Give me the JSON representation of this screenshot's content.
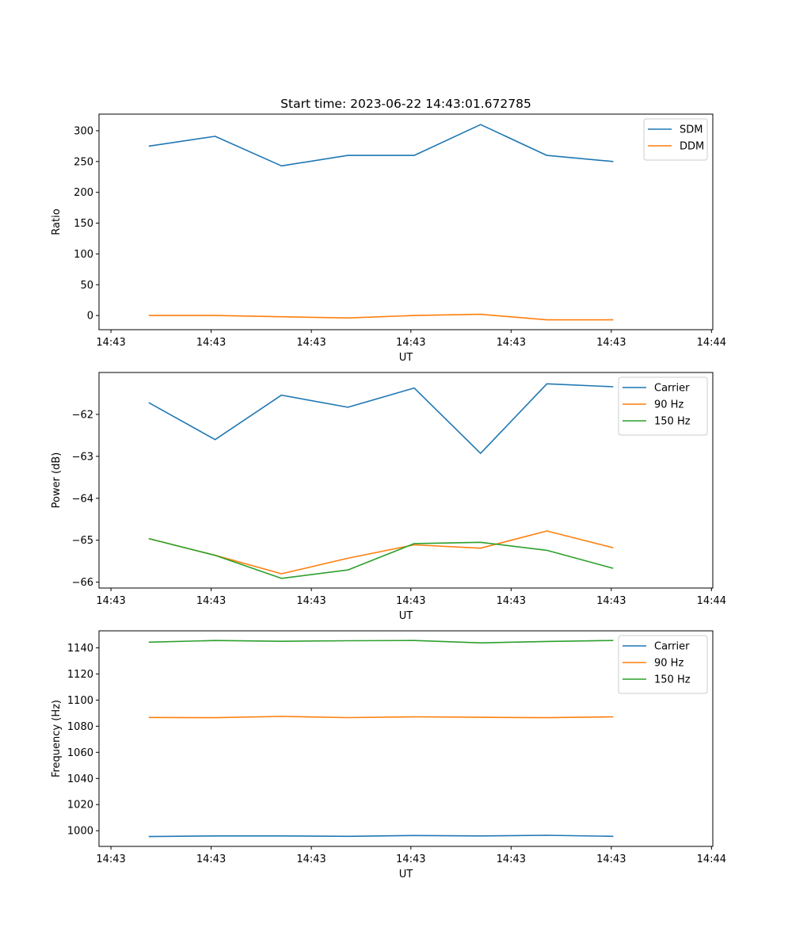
{
  "chart_data": [
    {
      "type": "line",
      "title": "Start time: 2023-06-22 14:43:01.672785",
      "xlabel": "UT",
      "ylabel": "Ratio",
      "x": [
        1,
        2,
        3,
        4,
        5,
        6,
        7,
        8
      ],
      "xlim": [
        0.25,
        9.5
      ],
      "xticks": [
        0.43,
        1.94,
        3.45,
        4.95,
        6.46,
        7.97,
        9.48
      ],
      "xtick_labels": [
        "14:43",
        "14:43",
        "14:43",
        "14:43",
        "14:43",
        "14:43",
        "14:44"
      ],
      "ylim": [
        -23,
        327
      ],
      "yticks": [
        0,
        50,
        100,
        150,
        200,
        250,
        300
      ],
      "ytick_labels": [
        "0",
        "50",
        "100",
        "150",
        "200",
        "250",
        "300"
      ],
      "grid": false,
      "legend": "top-right",
      "series": [
        {
          "name": "SDM",
          "color": "#1f77b4",
          "values": [
            275,
            291,
            243,
            260,
            260,
            310,
            260,
            250
          ]
        },
        {
          "name": "DDM",
          "color": "#ff7f0e",
          "values": [
            0,
            0,
            -2,
            -4,
            0,
            2,
            -7,
            -7
          ]
        }
      ]
    },
    {
      "type": "line",
      "title": "",
      "xlabel": "UT",
      "ylabel": "Power (dB)",
      "x": [
        1,
        2,
        3,
        4,
        5,
        6,
        7,
        8
      ],
      "xlim": [
        0.25,
        9.5
      ],
      "xticks": [
        0.43,
        1.94,
        3.45,
        4.95,
        6.46,
        7.97,
        9.48
      ],
      "xtick_labels": [
        "14:43",
        "14:43",
        "14:43",
        "14:43",
        "14:43",
        "14:43",
        "14:44"
      ],
      "ylim": [
        -66.14,
        -61.0
      ],
      "yticks": [
        -66,
        -65,
        -64,
        -63,
        -62
      ],
      "ytick_labels": [
        "−66",
        "−65",
        "−64",
        "−63",
        "−62"
      ],
      "grid": false,
      "legend": "top-right",
      "series": [
        {
          "name": "Carrier",
          "color": "#1f77b4",
          "values": [
            -61.72,
            -62.6,
            -61.54,
            -61.83,
            -61.37,
            -62.93,
            -61.27,
            -61.34
          ]
        },
        {
          "name": "90 Hz",
          "color": "#ff7f0e",
          "values": [
            -64.96,
            -65.36,
            -65.8,
            -65.43,
            -65.11,
            -65.19,
            -64.78,
            -65.18
          ]
        },
        {
          "name": "150 Hz",
          "color": "#2ca02c",
          "values": [
            -64.96,
            -65.36,
            -65.91,
            -65.71,
            -65.08,
            -65.05,
            -65.24,
            -65.67
          ]
        }
      ]
    },
    {
      "type": "line",
      "title": "",
      "xlabel": "UT",
      "ylabel": "Frequency (Hz)",
      "x": [
        1,
        2,
        3,
        4,
        5,
        6,
        7,
        8
      ],
      "xlim": [
        0.25,
        9.5
      ],
      "xticks": [
        0.43,
        1.94,
        3.45,
        4.95,
        6.46,
        7.97,
        9.48
      ],
      "xtick_labels": [
        "14:43",
        "14:43",
        "14:43",
        "14:43",
        "14:43",
        "14:43",
        "14:44"
      ],
      "ylim": [
        988,
        1153
      ],
      "yticks": [
        1000,
        1020,
        1040,
        1060,
        1080,
        1100,
        1120,
        1140
      ],
      "ytick_labels": [
        "1000",
        "1020",
        "1040",
        "1060",
        "1080",
        "1100",
        "1120",
        "1140"
      ],
      "grid": false,
      "legend": "top-right",
      "series": [
        {
          "name": "Carrier",
          "color": "#1f77b4",
          "values": [
            995.5,
            996,
            996,
            995.7,
            996.3,
            996,
            996.5,
            995.7
          ]
        },
        {
          "name": "90 Hz",
          "color": "#ff7f0e",
          "values": [
            1086.7,
            1086.5,
            1087.5,
            1086.6,
            1087.2,
            1086.8,
            1086.5,
            1087.2
          ]
        },
        {
          "name": "150 Hz",
          "color": "#2ca02c",
          "values": [
            1144.3,
            1145.6,
            1145,
            1145.4,
            1145.6,
            1143.8,
            1144.9,
            1145.6
          ]
        }
      ]
    }
  ]
}
